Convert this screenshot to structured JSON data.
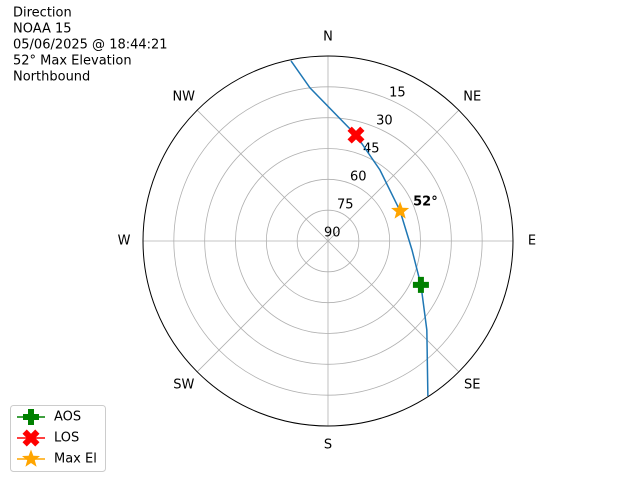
{
  "chart_data": {
    "type": "polar",
    "title_lines": [
      "Direction",
      "NOAA 15",
      "05/06/2025 @ 18:44:21",
      "52° Max Elevation",
      "Northbound"
    ],
    "xlim": [
      0,
      360
    ],
    "ylim": [
      90,
      0
    ],
    "xticks": [
      {
        "value": 0,
        "label": "N"
      },
      {
        "value": 45,
        "label": "NE"
      },
      {
        "value": 90,
        "label": "E"
      },
      {
        "value": 135,
        "label": "SE"
      },
      {
        "value": 180,
        "label": "S"
      },
      {
        "value": 225,
        "label": "SW"
      },
      {
        "value": 270,
        "label": "W"
      },
      {
        "value": 315,
        "label": "NW"
      }
    ],
    "yticks": [
      15,
      30,
      45,
      60,
      75,
      90
    ],
    "grid": true,
    "legend": "lower left",
    "series": [
      {
        "color": "#1f77b4",
        "marker": "line",
        "x": [
          348.4,
          353.3,
          14.8,
          36.2,
          67.4,
          96.1,
          115.3,
          132,
          147.2
        ],
        "values": [
          0.6,
          15,
          36.7,
          47.2,
          52,
          48.9,
          40,
          25.3,
          0.3
        ]
      },
      {
        "name": "AOS",
        "color": "green",
        "marker": "plus",
        "x": [
          115.3
        ],
        "values": [
          40
        ]
      },
      {
        "name": "LOS",
        "color": "red",
        "marker": "x",
        "x": [
          14.8
        ],
        "values": [
          36.7
        ]
      },
      {
        "name": "Max El",
        "color": "orange",
        "marker": "star",
        "x": [
          67.4
        ],
        "values": [
          52
        ]
      }
    ],
    "annotations": [
      {
        "text": "52°",
        "x": 67.4,
        "y": 52
      }
    ]
  }
}
